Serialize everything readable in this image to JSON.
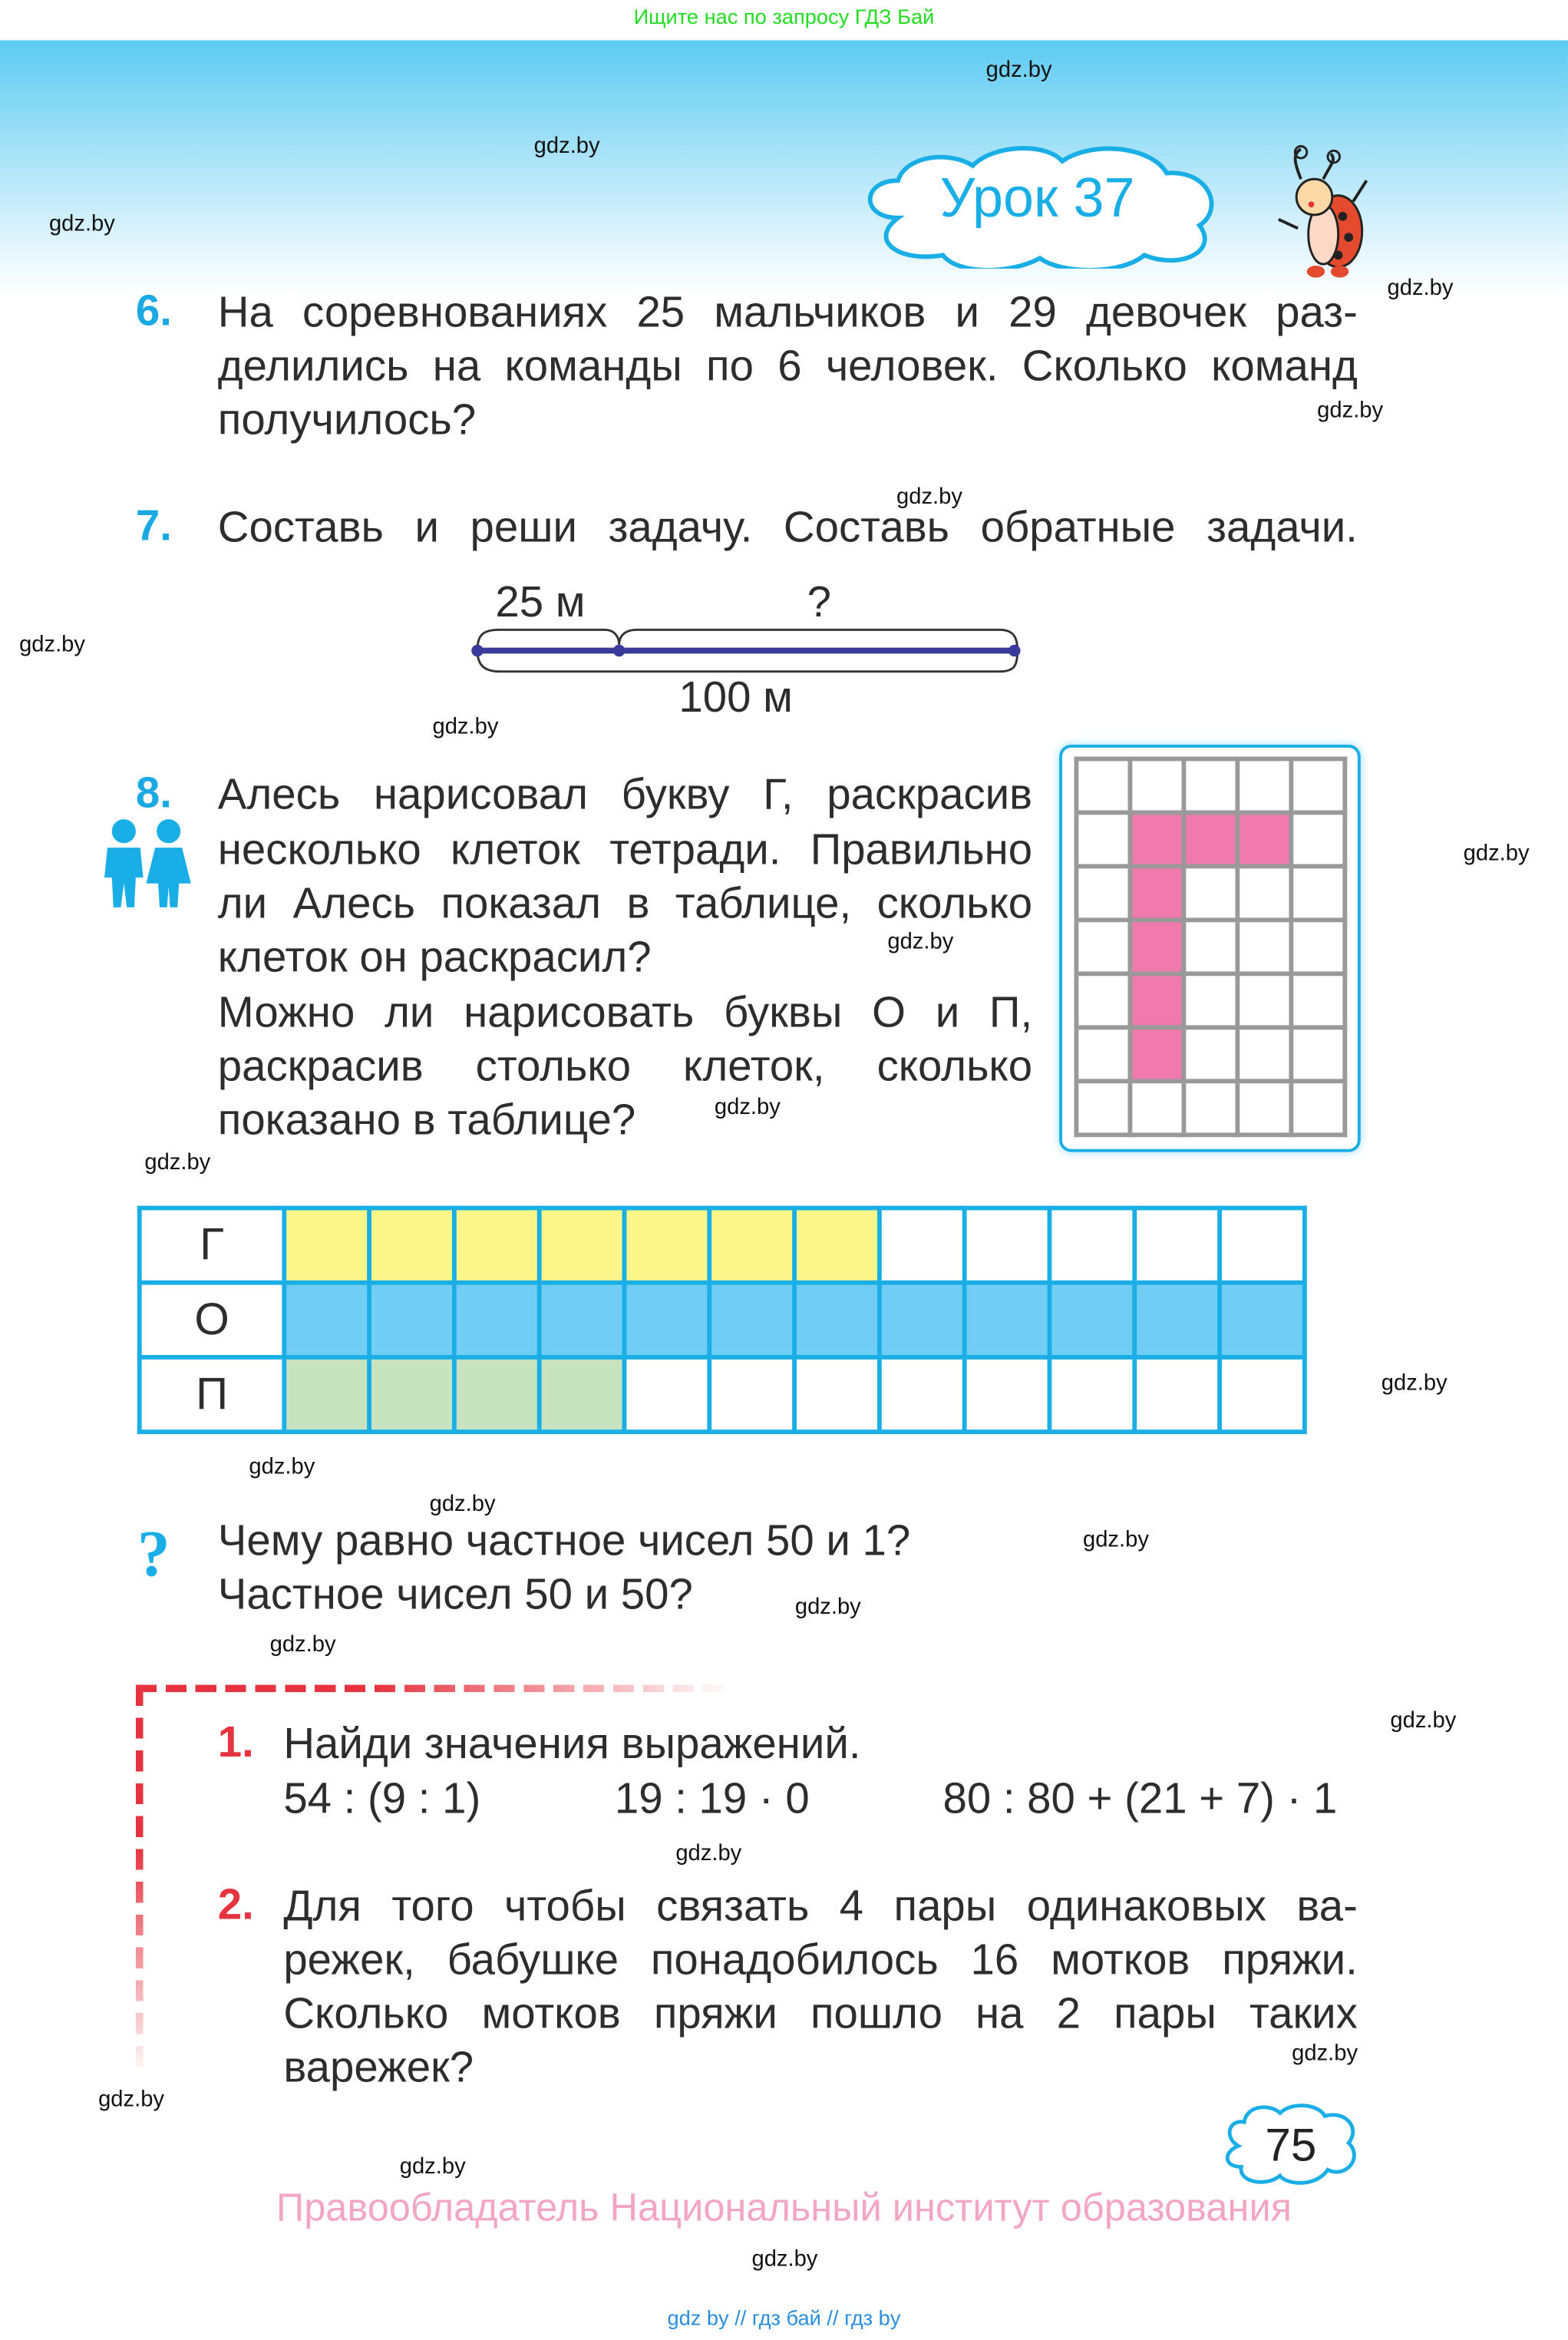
{
  "top_banner": "Ищите нас по запросу ГДЗ Бай",
  "lesson_title": "Урок 37",
  "watermark": "gdz.by",
  "task6": {
    "number": "6.",
    "lines": [
      "На соревнованиях 25 мальчиков и 29 девочек раз-",
      "делились на команды по 6 человек. Сколько команд",
      "получилось?"
    ]
  },
  "task7": {
    "number": "7.",
    "lines": [
      "Составь и реши задачу. Составь обратные задачи."
    ],
    "diagram": {
      "part_label": "25 м",
      "unknown_label": "?",
      "total_label": "100 м"
    }
  },
  "task8": {
    "number": "8.",
    "lines": [
      "Алесь нарисовал букву Г, раскрасив",
      "несколько клеток тетради. Правильно",
      "ли Алесь показал в таблице, сколько",
      "клеток он раскрасил?",
      "Можно ли нарисовать буквы О и П,",
      "раскрасив столько клеток, сколько",
      "показано в таблице?"
    ],
    "letter_grid": {
      "cols": 5,
      "rows": 7,
      "filled": [
        [
          1,
          1
        ],
        [
          1,
          2
        ],
        [
          1,
          3
        ],
        [
          2,
          1
        ],
        [
          3,
          1
        ],
        [
          4,
          1
        ],
        [
          5,
          1
        ]
      ],
      "fill_color": "#f07aad"
    },
    "table": {
      "cells_per_row": 12,
      "rows": [
        {
          "letter": "Г",
          "filled": 7,
          "color": "#fbf68a"
        },
        {
          "letter": "О",
          "filled": 12,
          "color": "#71cdf4"
        },
        {
          "letter": "П",
          "filled": 4,
          "color": "#c7e3bf"
        }
      ]
    }
  },
  "question": {
    "lines": [
      "Чему равно частное чисел 50 и 1?",
      "Частное чисел 50 и 50?"
    ]
  },
  "review": {
    "task1": {
      "number": "1.",
      "title": "Найди значения выражений.",
      "expressions": [
        "54 : (9 : 1)",
        "19 : 19 · 0",
        "80 : 80 + (21 + 7) · 1"
      ]
    },
    "task2": {
      "number": "2.",
      "lines": [
        "Для того чтобы связать 4 пары одинаковых ва-",
        "режек, бабушке понадобилось 16 мотков пряжи.",
        "Сколько мотков пряжи пошло на 2 пары таких",
        "варежек?"
      ]
    }
  },
  "page_number": "75",
  "copyright": "Правообладатель Национальный институт образования",
  "bottom_links": "gdz by  //  гдз бай  //  гдз by"
}
